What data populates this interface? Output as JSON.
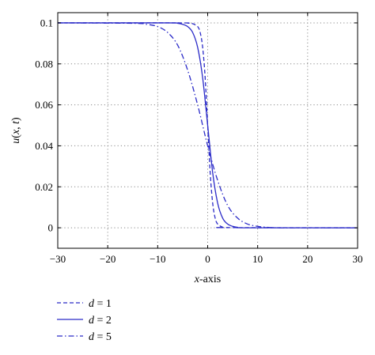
{
  "chart_data": {
    "type": "line",
    "title": "",
    "xlabel": "x-axis",
    "ylabel": "u(x, t)",
    "xlim": [
      -30,
      30
    ],
    "ylim": [
      -0.01,
      0.105
    ],
    "xticks": [
      -30,
      -20,
      -10,
      0,
      10,
      20,
      30
    ],
    "xtick_labels": [
      "−30",
      "−20",
      "−10",
      "0",
      "10",
      "20",
      "30"
    ],
    "yticks": [
      0,
      0.02,
      0.04,
      0.06,
      0.08,
      0.1
    ],
    "ytick_labels": [
      "0",
      "0.02",
      "0.04",
      "0.06",
      "0.08",
      "0.1"
    ],
    "grid": true,
    "legend_position": "below",
    "line_color": "#2b2bc8",
    "series": [
      {
        "name": "d = 1",
        "line_style": "dashed",
        "x": [
          -30,
          -6,
          -4,
          -3,
          -2,
          -1.5,
          -1,
          -0.5,
          0,
          0.5,
          1,
          1.5,
          2,
          3,
          4,
          30
        ],
        "y": [
          0.1,
          0.1,
          0.0999,
          0.0996,
          0.0982,
          0.0953,
          0.088,
          0.0731,
          0.05,
          0.0269,
          0.012,
          0.0047,
          0.0018,
          0.0003,
          0.0001,
          0
        ]
      },
      {
        "name": "d = 2",
        "line_style": "solid",
        "x": [
          -30,
          -8,
          -6,
          -5,
          -4,
          -3,
          -2,
          -1,
          0,
          1,
          2,
          3,
          4,
          5,
          6,
          8,
          30
        ],
        "y": [
          0.1,
          0.1,
          0.0998,
          0.0993,
          0.0982,
          0.0953,
          0.088,
          0.0731,
          0.05,
          0.0269,
          0.012,
          0.0047,
          0.0018,
          0.0007,
          0.0002,
          0,
          0
        ]
      },
      {
        "name": "d = 5",
        "line_style": "dashdot",
        "x": [
          -30,
          -15,
          -12,
          -10,
          -8,
          -6,
          -4,
          -2,
          0,
          2,
          4,
          6,
          8,
          10,
          12,
          15,
          30
        ],
        "y": [
          0.1,
          0.0998,
          0.0992,
          0.0982,
          0.0953,
          0.0891,
          0.0769,
          0.0599,
          0.04,
          0.0231,
          0.0109,
          0.0047,
          0.0018,
          0.0007,
          0.0002,
          0,
          0
        ]
      }
    ]
  }
}
